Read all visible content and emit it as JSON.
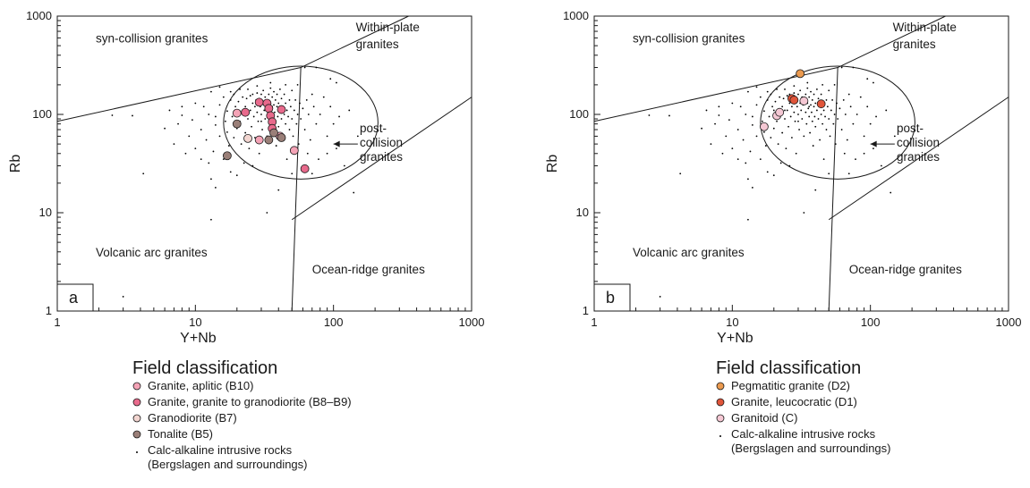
{
  "chart_data": [
    {
      "type": "scatter",
      "panel_label": "a",
      "xlabel": "Y+Nb",
      "ylabel": "Rb",
      "xscale": "log",
      "yscale": "log",
      "xlim": [
        1,
        1000
      ],
      "ylim": [
        1,
        1000
      ],
      "x_ticks": [
        "1",
        "10",
        "100",
        "1000"
      ],
      "y_ticks": [
        "1",
        "10",
        "100",
        "1000"
      ],
      "field_labels": {
        "syn_collision": "syn-collision granites",
        "within_plate": "Within-plate\ngranites",
        "post_collision": "post-\ncollision\ngranites",
        "volcanic_arc": "Volcanic arc granites",
        "ocean_ridge": "Ocean-ridge granites"
      },
      "legend": {
        "title": "Field classification",
        "entries": [
          {
            "label": "Granite, aplitic (B10)",
            "color": "#f4a3b6",
            "marker": "circle"
          },
          {
            "label": "Granite, granite to granodiorite (B8–B9)",
            "color": "#e86a8c",
            "marker": "circle"
          },
          {
            "label": "Granodiorite (B7)",
            "color": "#f2d5d0",
            "marker": "circle"
          },
          {
            "label": "Tonalite (B5)",
            "color": "#9a7f78",
            "marker": "circle"
          },
          {
            "label": "Calc-alkaline intrusive rocks\n(Bergslagen and surroundings)",
            "color": "#000000",
            "marker": "dot"
          }
        ]
      },
      "series": [
        {
          "name": "Granite, aplitic (B10)",
          "points": [
            [
              20,
              103
            ],
            [
              29,
              55
            ],
            [
              41,
              60
            ],
            [
              52,
              43
            ]
          ]
        },
        {
          "name": "Granite, granite to granodiorite (B8–B9)",
          "points": [
            [
              23,
              105
            ],
            [
              29,
              133
            ],
            [
              33,
              130
            ],
            [
              34,
              115
            ],
            [
              35,
              97
            ],
            [
              36,
              84
            ],
            [
              36,
              72
            ],
            [
              42,
              112
            ],
            [
              62,
              28
            ]
          ]
        },
        {
          "name": "Granodiorite (B7)",
          "points": [
            [
              24,
              57
            ]
          ]
        },
        {
          "name": "Tonalite (B5)",
          "points": [
            [
              17,
              38
            ],
            [
              20,
              80
            ],
            [
              34,
              55
            ],
            [
              37,
              65
            ],
            [
              42,
              58
            ]
          ]
        },
        {
          "name": "Calc-alkaline intrusive rocks\n(Bergslagen and surroundings)",
          "ref": "background"
        }
      ]
    },
    {
      "type": "scatter",
      "panel_label": "b",
      "xlabel": "Y+Nb",
      "ylabel": "Rb",
      "xscale": "log",
      "yscale": "log",
      "xlim": [
        1,
        1000
      ],
      "ylim": [
        1,
        1000
      ],
      "x_ticks": [
        "1",
        "10",
        "100",
        "1000"
      ],
      "y_ticks": [
        "1",
        "10",
        "100",
        "1000"
      ],
      "field_labels": {
        "syn_collision": "syn-collision granites",
        "within_plate": "Within-plate\ngranites",
        "post_collision": "post-\ncollision\ngranites",
        "volcanic_arc": "Volcanic arc granites",
        "ocean_ridge": "Ocean-ridge granites"
      },
      "legend": {
        "title": "Field classification",
        "entries": [
          {
            "label": "Pegmatitic granite (D2)",
            "color": "#eb9a4f",
            "marker": "circle"
          },
          {
            "label": "Granite, leucocratic (D1)",
            "color": "#e0553a",
            "marker": "circle"
          },
          {
            "label": "Granitoid (C)",
            "color": "#f5c8d4",
            "marker": "circle"
          },
          {
            "label": "Calc-alkaline intrusive rocks\n(Bergslagen and surroundings)",
            "color": "#000000",
            "marker": "dot"
          }
        ]
      },
      "series": [
        {
          "name": "Pegmatitic granite (D2)",
          "points": [
            [
              31,
              260
            ]
          ]
        },
        {
          "name": "Granite, leucocratic (D1)",
          "points": [
            [
              27,
              145
            ],
            [
              28,
              140
            ],
            [
              44,
              128
            ]
          ]
        },
        {
          "name": "Granitoid (C)",
          "points": [
            [
              17,
              75
            ],
            [
              21,
              97
            ],
            [
              22,
              105
            ],
            [
              33,
              137
            ]
          ]
        },
        {
          "name": "Calc-alkaline intrusive rocks\n(Bergslagen and surroundings)",
          "ref": "background"
        }
      ]
    }
  ],
  "background_points": [
    [
      2.5,
      98
    ],
    [
      3.5,
      97
    ],
    [
      4.2,
      25
    ],
    [
      3,
      1.4
    ],
    [
      6,
      72
    ],
    [
      7,
      50
    ],
    [
      8,
      98
    ],
    [
      8.5,
      40
    ],
    [
      9,
      60
    ],
    [
      9.5,
      88
    ],
    [
      10,
      45
    ],
    [
      11,
      70
    ],
    [
      11.5,
      120
    ],
    [
      12,
      55
    ],
    [
      12.5,
      100
    ],
    [
      12.5,
      32
    ],
    [
      13,
      8.5
    ],
    [
      13,
      170
    ],
    [
      13.5,
      42
    ],
    [
      14,
      78
    ],
    [
      14,
      95
    ],
    [
      15,
      60
    ],
    [
      15,
      125
    ],
    [
      16,
      35
    ],
    [
      16,
      150
    ],
    [
      16.5,
      85
    ],
    [
      17,
      108
    ],
    [
      17,
      66
    ],
    [
      17.5,
      48
    ],
    [
      18,
      140
    ],
    [
      18,
      26
    ],
    [
      18.5,
      95
    ],
    [
      19,
      58
    ],
    [
      19,
      160
    ],
    [
      19.5,
      120
    ],
    [
      20,
      24
    ],
    [
      20,
      72
    ],
    [
      20.5,
      135
    ],
    [
      21,
      85
    ],
    [
      21,
      180
    ],
    [
      21.5,
      50
    ],
    [
      22,
      100
    ],
    [
      22,
      150
    ],
    [
      22.5,
      32
    ],
    [
      23,
      120
    ],
    [
      23,
      65
    ],
    [
      23.5,
      145
    ],
    [
      24,
      90
    ],
    [
      24,
      180
    ],
    [
      24.5,
      45
    ],
    [
      25,
      110
    ],
    [
      25,
      155
    ],
    [
      25.5,
      75
    ],
    [
      26,
      130
    ],
    [
      26,
      160
    ],
    [
      26.5,
      95
    ],
    [
      27,
      120
    ],
    [
      27,
      58
    ],
    [
      27.5,
      140
    ],
    [
      28,
      105
    ],
    [
      28,
      165
    ],
    [
      28.5,
      85
    ],
    [
      29,
      145
    ],
    [
      29,
      40
    ],
    [
      29.5,
      120
    ],
    [
      30,
      100
    ],
    [
      30,
      160
    ],
    [
      30.5,
      70
    ],
    [
      31,
      130
    ],
    [
      31,
      175
    ],
    [
      31.5,
      110
    ],
    [
      32,
      90
    ],
    [
      32,
      150
    ],
    [
      32.5,
      125
    ],
    [
      33,
      60
    ],
    [
      33,
      10
    ],
    [
      33.5,
      140
    ],
    [
      34,
      105
    ],
    [
      34,
      160
    ],
    [
      34.5,
      80
    ],
    [
      35,
      130
    ],
    [
      35,
      185
    ],
    [
      35.5,
      115
    ],
    [
      36,
      95
    ],
    [
      36,
      150
    ],
    [
      36.5,
      65
    ],
    [
      37,
      125
    ],
    [
      37,
      170
    ],
    [
      37.5,
      105
    ],
    [
      38,
      85
    ],
    [
      38,
      140
    ],
    [
      38.5,
      48
    ],
    [
      39,
      120
    ],
    [
      39,
      160
    ],
    [
      39.5,
      95
    ],
    [
      40,
      130
    ],
    [
      40,
      75
    ],
    [
      41,
      110
    ],
    [
      41,
      180
    ],
    [
      42,
      90
    ],
    [
      42,
      145
    ],
    [
      43,
      120
    ],
    [
      43,
      55
    ],
    [
      44,
      100
    ],
    [
      44,
      160
    ],
    [
      45,
      80
    ],
    [
      45,
      130
    ],
    [
      46,
      110
    ],
    [
      46,
      35
    ],
    [
      47,
      95
    ],
    [
      48,
      140
    ],
    [
      48,
      70
    ],
    [
      49,
      120
    ],
    [
      50,
      90
    ],
    [
      50,
      175
    ],
    [
      51,
      60
    ],
    [
      52,
      110
    ],
    [
      53,
      140
    ],
    [
      54,
      80
    ],
    [
      55,
      100
    ],
    [
      56,
      50
    ],
    [
      57,
      130
    ],
    [
      58,
      90
    ],
    [
      60,
      115
    ],
    [
      62,
      70
    ],
    [
      64,
      140
    ],
    [
      66,
      100
    ],
    [
      68,
      55
    ],
    [
      70,
      160
    ],
    [
      72,
      120
    ],
    [
      75,
      80
    ],
    [
      78,
      35
    ],
    [
      80,
      100
    ],
    [
      85,
      150
    ],
    [
      90,
      60
    ],
    [
      95,
      120
    ],
    [
      100,
      80
    ],
    [
      105,
      45
    ],
    [
      110,
      95
    ],
    [
      120,
      30
    ],
    [
      130,
      110
    ],
    [
      140,
      16
    ],
    [
      150,
      60
    ],
    [
      75,
      300
    ],
    [
      45,
      200
    ],
    [
      55,
      200
    ],
    [
      62,
      300
    ],
    [
      95,
      230
    ],
    [
      105,
      210
    ],
    [
      35,
      210
    ],
    [
      28,
      195
    ],
    [
      18,
      170
    ],
    [
      15,
      190
    ],
    [
      10,
      130
    ],
    [
      8,
      120
    ],
    [
      6.5,
      110
    ],
    [
      7.5,
      80
    ],
    [
      11,
      35
    ],
    [
      13,
      22
    ],
    [
      14,
      18
    ],
    [
      40,
      17
    ],
    [
      26,
      30
    ],
    [
      50,
      25
    ],
    [
      70,
      25
    ],
    [
      90,
      40
    ],
    [
      65,
      40
    ],
    [
      24,
      110
    ],
    [
      36,
      120
    ],
    [
      30,
      85
    ],
    [
      20,
      110
    ]
  ]
}
